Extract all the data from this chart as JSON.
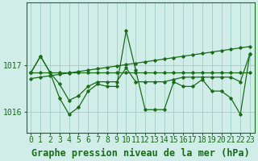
{
  "x": [
    0,
    1,
    2,
    3,
    4,
    5,
    6,
    7,
    8,
    9,
    10,
    11,
    12,
    13,
    14,
    15,
    16,
    17,
    18,
    19,
    20,
    21,
    22,
    23
  ],
  "series_flat": [
    1016.85,
    1016.85,
    1016.85,
    1016.85,
    1016.85,
    1016.85,
    1016.85,
    1016.85,
    1016.85,
    1016.85,
    1016.85,
    1016.85,
    1016.85,
    1016.85,
    1016.85,
    1016.85,
    1016.85,
    1016.85,
    1016.85,
    1016.85,
    1016.85,
    1016.85,
    1016.85,
    1016.85
  ],
  "series_trend": [
    1016.72,
    1016.75,
    1016.78,
    1016.81,
    1016.84,
    1016.87,
    1016.9,
    1016.93,
    1016.96,
    1016.99,
    1017.02,
    1017.05,
    1017.08,
    1017.11,
    1017.14,
    1017.17,
    1017.2,
    1017.23,
    1017.26,
    1017.29,
    1017.32,
    1017.35,
    1017.38,
    1017.41
  ],
  "series_mid": [
    1016.85,
    1017.2,
    1016.85,
    1016.6,
    1016.25,
    1016.35,
    1016.55,
    1016.65,
    1016.65,
    1016.65,
    1016.95,
    1016.65,
    1016.65,
    1016.65,
    1016.65,
    1016.7,
    1016.75,
    1016.75,
    1016.75,
    1016.75,
    1016.75,
    1016.75,
    1016.65,
    1017.25
  ],
  "series_main": [
    1016.85,
    1017.2,
    1016.85,
    1016.3,
    1015.95,
    1016.1,
    1016.45,
    1016.6,
    1016.55,
    1016.55,
    1017.75,
    1016.9,
    1016.05,
    1016.05,
    1016.05,
    1016.65,
    1016.55,
    1016.55,
    1016.7,
    1016.45,
    1016.45,
    1016.3,
    1015.95,
    1017.25
  ],
  "line_color": "#1a6b1a",
  "bg_color": "#d0ede8",
  "grid_color": "#9ecec7",
  "xlabel": "Graphe pression niveau de la mer (hPa)",
  "ylim_min": 1015.55,
  "ylim_max": 1018.35,
  "yticks": [
    1016,
    1017
  ],
  "xlabel_fontsize": 8.5,
  "tick_fontsize": 7
}
